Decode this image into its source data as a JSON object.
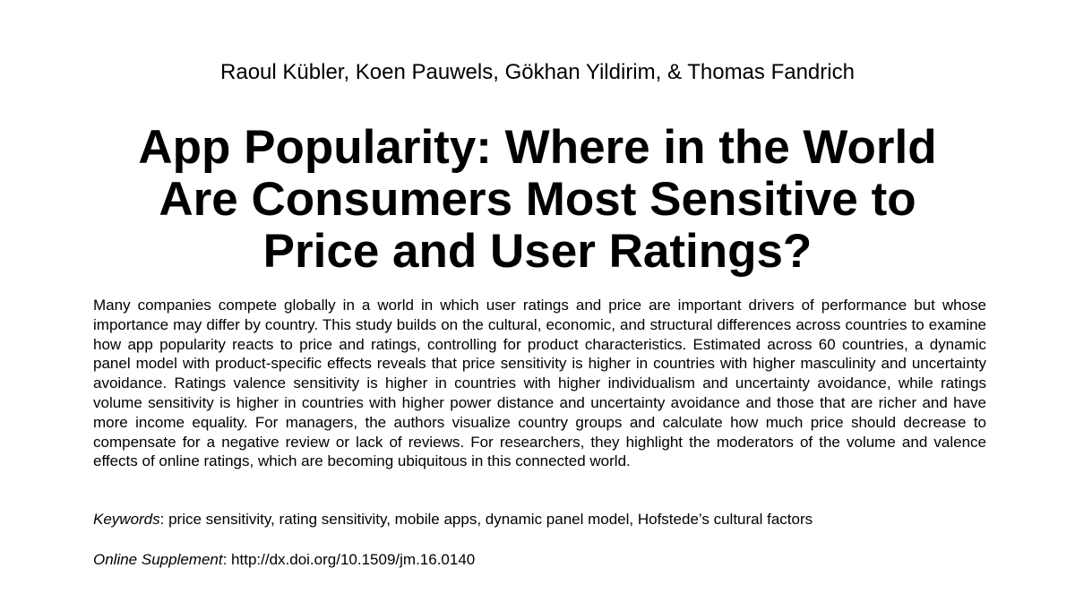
{
  "authors": "Raoul Kübler, Koen Pauwels, Gökhan Yildirim, & Thomas Fandrich",
  "title": {
    "lines": [
      "App Popularity: Where in the World",
      "Are Consumers Most Sensitive to",
      "Price and User Ratings?"
    ]
  },
  "abstract": "Many companies compete globally in a world in which user ratings and price are important drivers of performance but whose importance may differ by country. This study builds on the cultural, economic, and structural differences across countries to examine how app popularity reacts to price and ratings, controlling for product characteristics. Estimated across 60 countries, a dynamic panel model with product-specific effects reveals that price sensitivity is higher in countries with higher masculinity and uncertainty avoidance. Ratings valence sensitivity is higher in countries with higher individualism and uncertainty avoidance, while ratings volume sensitivity is higher in countries with higher power distance and uncertainty avoidance and those that are richer and have more income equality. For managers, the authors visualize country groups and calculate how much price should decrease to compensate for a negative review or lack of reviews. For researchers, they highlight the moderators of the volume and valence effects of online ratings, which are becoming ubiquitous in this connected world.",
  "keywords": {
    "label": "Keywords",
    "separator": ": ",
    "value": "price sensitivity, rating sensitivity, mobile apps, dynamic panel model, Hofstede’s cultural factors"
  },
  "online_supplement": {
    "label": "Online Supplement",
    "separator": ": ",
    "value": "http://dx.doi.org/10.1509/jm.16.0140"
  }
}
